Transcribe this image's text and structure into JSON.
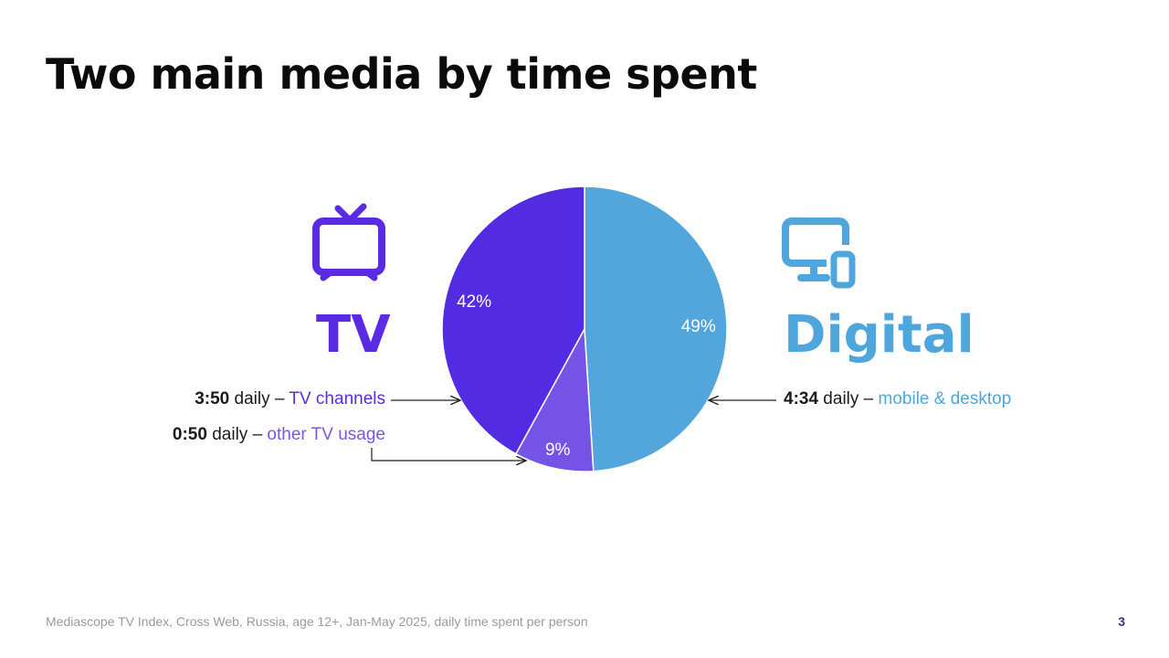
{
  "title": "Two main media by time spent",
  "tv": {
    "label": "TV",
    "icon": "tv-icon",
    "color": "#5b2be3",
    "channels_time": "3:50",
    "channels_text": " daily – ",
    "channels_label": "TV channels",
    "other_time": "0:50",
    "other_text": " daily – ",
    "other_label": "other TV usage",
    "other_color": "#7b55e6"
  },
  "digital": {
    "label": "Digital",
    "icon": "monitor-phone-icon",
    "color": "#4fa6dc",
    "time": "4:34",
    "text": " daily – ",
    "devices_label": "mobile & desktop"
  },
  "chart_data": {
    "type": "pie",
    "slices": [
      {
        "name": "Digital",
        "value": 49,
        "label": "49%",
        "color": "#52a6dc"
      },
      {
        "name": "Other TV usage",
        "value": 9,
        "label": "9%",
        "color": "#7453e6"
      },
      {
        "name": "TV channels",
        "value": 42,
        "label": "42%",
        "color": "#532be3"
      }
    ]
  },
  "footer": "Mediascope TV Index, Cross Web, Russia, age 12+, Jan-May 2025, daily time spent per person",
  "page_number": "3"
}
